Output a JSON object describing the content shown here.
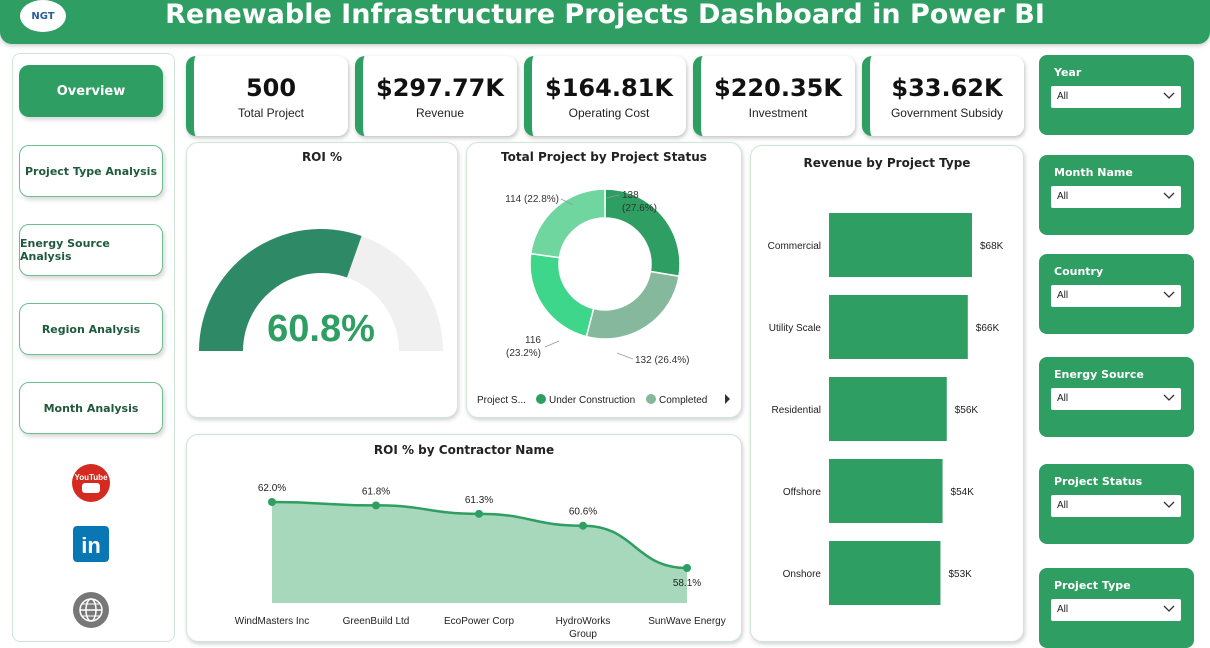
{
  "header": {
    "title": "Renewable Infrastructure Projects Dashboard in Power BI",
    "logo_text": "NGT"
  },
  "nav": {
    "overview": "Overview",
    "project_type": "Project Type Analysis",
    "energy_source": "Energy Source Analysis",
    "region": "Region Analysis",
    "month": "Month Analysis"
  },
  "social": {
    "youtube": "YouTube",
    "linkedin": "in"
  },
  "kpis": [
    {
      "value": "500",
      "label": "Total Project"
    },
    {
      "value": "$297.77K",
      "label": "Revenue"
    },
    {
      "value": "$164.81K",
      "label": "Operating Cost"
    },
    {
      "value": "$220.35K",
      "label": "Investment"
    },
    {
      "value": "$33.62K",
      "label": "Government Subsidy"
    }
  ],
  "roi": {
    "title": "ROI %",
    "value": 60.8,
    "display": "60.8%"
  },
  "status": {
    "title": "Total Project by Project Status",
    "legend_title": "Project S...",
    "legend": [
      "Under Construction",
      "Completed"
    ],
    "labels": [
      "138",
      "(27.6%)",
      "132 (26.4%)",
      "116",
      "(23.2%)",
      "114 (22.8%)"
    ]
  },
  "revenue_by_type": {
    "title": "Revenue by Project Type",
    "labels": [
      "$68K",
      "$66K",
      "$56K",
      "$54K",
      "$53K"
    ]
  },
  "roi_by_contractor": {
    "title": "ROI % by Contractor Name",
    "labels": [
      "62.0%",
      "61.8%",
      "61.3%",
      "60.6%",
      "58.1%"
    ],
    "x_labels": [
      "WindMasters Inc",
      "GreenBuild Ltd",
      "EcoPower Corp",
      "HydroWorks",
      "Group",
      "SunWave Energy"
    ]
  },
  "slicers": [
    {
      "label": "Year",
      "value": "All"
    },
    {
      "label": "Month Name",
      "value": "All"
    },
    {
      "label": "Country",
      "value": "All"
    },
    {
      "label": "Energy Source",
      "value": "All"
    },
    {
      "label": "Project Status",
      "value": "All"
    },
    {
      "label": "Project Type",
      "value": "All"
    }
  ],
  "chart_data": [
    {
      "type": "gauge",
      "title": "ROI %",
      "value": 60.8,
      "range": [
        0,
        100
      ]
    },
    {
      "type": "pie",
      "title": "Total Project by Project Status",
      "categories": [
        "",
        "",
        "",
        ""
      ],
      "values": [
        138,
        132,
        116,
        114
      ],
      "percentages": [
        27.6,
        26.4,
        23.2,
        22.8
      ],
      "colors": [
        "#2e9e62",
        "#85b89c",
        "#3dd68a",
        "#6fd6a0"
      ]
    },
    {
      "type": "bar",
      "orientation": "horizontal",
      "title": "Revenue by Project Type",
      "categories": [
        "Commercial",
        "Utility Scale",
        "Residential",
        "Offshore",
        "Onshore"
      ],
      "values": [
        68,
        66,
        56,
        54,
        53
      ],
      "unit": "K USD",
      "color": "#2e9e62"
    },
    {
      "type": "area",
      "title": "ROI % by Contractor Name",
      "categories": [
        "WindMasters Inc",
        "GreenBuild Ltd",
        "EcoPower Corp",
        "HydroWorks Group",
        "SunWave Energy"
      ],
      "values": [
        62.0,
        61.8,
        61.3,
        60.6,
        58.1
      ],
      "color": "#2e9e62"
    }
  ]
}
